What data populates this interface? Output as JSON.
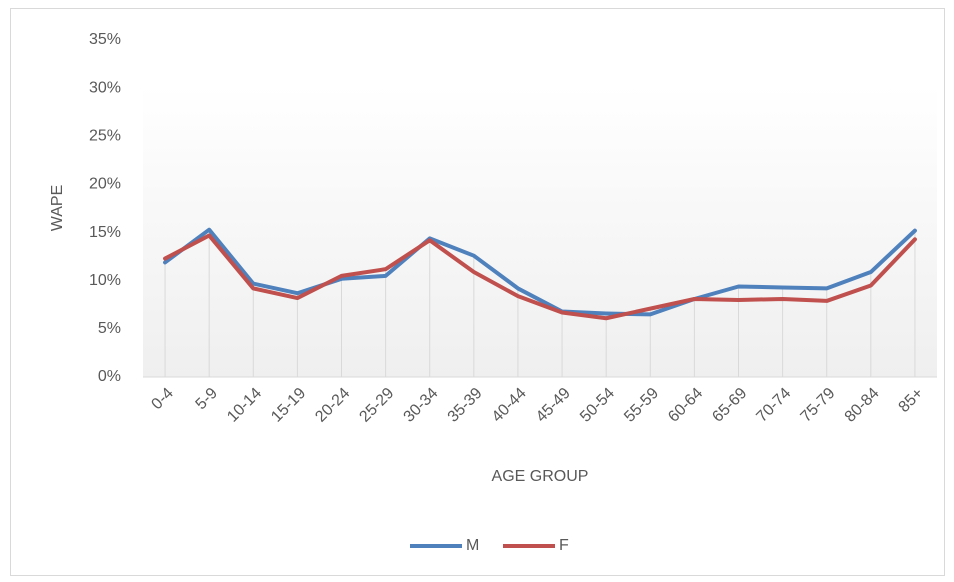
{
  "chart_data": {
    "type": "line",
    "y_label": "WAPE",
    "x_label": "AGE GROUP",
    "categories": [
      "0-4",
      "5-9",
      "10-14",
      "15-19",
      "20-24",
      "25-29",
      "30-34",
      "35-39",
      "40-44",
      "45-49",
      "50-54",
      "55-59",
      "60-64",
      "65-69",
      "70-74",
      "75-79",
      "80-84",
      "85+"
    ],
    "series": [
      {
        "name": "M",
        "color": "#4f81bd",
        "values": [
          11.9,
          15.3,
          9.7,
          8.7,
          10.2,
          10.5,
          14.4,
          12.6,
          9.2,
          6.8,
          6.6,
          6.5,
          8.1,
          9.4,
          9.3,
          9.2,
          10.9,
          15.2
        ]
      },
      {
        "name": "F",
        "color": "#c0504d",
        "values": [
          12.3,
          14.7,
          9.2,
          8.2,
          10.5,
          11.2,
          14.2,
          10.9,
          8.4,
          6.7,
          6.1,
          7.1,
          8.1,
          8.0,
          8.1,
          7.9,
          9.5,
          14.3
        ]
      }
    ],
    "ylim": [
      0,
      35
    ],
    "yticks": [
      {
        "value": 0,
        "label": "0%"
      },
      {
        "value": 5,
        "label": "5%"
      },
      {
        "value": 10,
        "label": "10%"
      },
      {
        "value": 15,
        "label": "15%"
      },
      {
        "value": 20,
        "label": "20%"
      },
      {
        "value": 25,
        "label": "25%"
      },
      {
        "value": 30,
        "label": "30%"
      },
      {
        "value": 35,
        "label": "35%"
      }
    ],
    "drop_lines": true,
    "legend": "bottom"
  }
}
